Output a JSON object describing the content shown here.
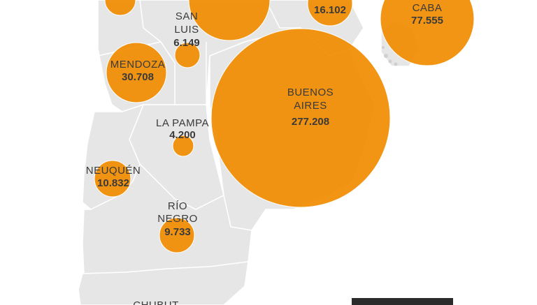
{
  "map": {
    "provinces": [
      {
        "id": "san-luis",
        "name_lines": [
          "SAN",
          "LUIS"
        ],
        "value": "6.149"
      },
      {
        "id": "mendoza",
        "name_lines": [
          "MENDOZA"
        ],
        "value": "30.708"
      },
      {
        "id": "buenos-aires",
        "name_lines": [
          "BUENOS",
          "AIRES"
        ],
        "value": "277.208"
      },
      {
        "id": "caba",
        "name_lines": [
          "CABA"
        ],
        "value": "77.555"
      },
      {
        "id": "santa-fe",
        "name_lines": [],
        "value": "16.102"
      },
      {
        "id": "la-pampa",
        "name_lines": [
          "LA PAMPA"
        ],
        "value": "4.200"
      },
      {
        "id": "neuquen",
        "name_lines": [
          "NEUQUÉN"
        ],
        "value": "10.832"
      },
      {
        "id": "rio-negro",
        "name_lines": [
          "RÍO",
          "NEGRO"
        ],
        "value": "9.733"
      },
      {
        "id": "chubut",
        "name_lines": [
          "CHUBUT"
        ],
        "value": ""
      }
    ],
    "colors": {
      "land": "#e6e6e6",
      "border": "#ffffff",
      "bubble": "#f28c00",
      "bubble_stroke": "#ffffff",
      "label_text": "#3a3a3a",
      "corner_box": "#2b2b2b"
    }
  }
}
